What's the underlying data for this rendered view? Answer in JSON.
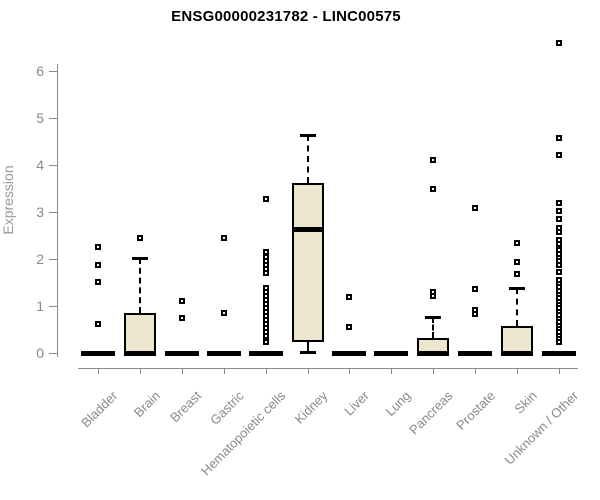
{
  "page": {
    "background": "#ffffff"
  },
  "chart_data": {
    "type": "boxplot",
    "title": "ENSG00000231782 - LINC00575",
    "ylabel": "Expression",
    "xlabel": "",
    "yticks": [
      0,
      1,
      2,
      3,
      4,
      5,
      6
    ],
    "ylim": [
      0,
      6.15
    ],
    "grid": false,
    "legend": "none",
    "colors": {
      "box_fill": "#ede6cf",
      "box_stroke": "#000000",
      "axis": "#8a8a8a",
      "tick_label": "#8a8a8a",
      "title": "#000000"
    },
    "categories": [
      "Bladder",
      "Brain",
      "Breast",
      "Gastric",
      "Hematopoietic cells",
      "Kidney",
      "Liver",
      "Lung",
      "Pancreas",
      "Prostate",
      "Skin",
      "Unknown / Other"
    ],
    "series": [
      {
        "category": "Bladder",
        "q1": 0,
        "median": 0,
        "q3": 0,
        "whisker_low": 0,
        "whisker_high": 0,
        "outliers": [
          2.26,
          1.87,
          1.51,
          0.62
        ]
      },
      {
        "category": "Brain",
        "q1": 0,
        "median": 0,
        "q3": 0.85,
        "whisker_low": 0,
        "whisker_high": 2.02,
        "outliers": [
          2.45
        ]
      },
      {
        "category": "Breast",
        "q1": 0,
        "median": 0,
        "q3": 0,
        "whisker_low": 0,
        "whisker_high": 0,
        "outliers": [
          1.11,
          0.74
        ]
      },
      {
        "category": "Gastric",
        "q1": 0,
        "median": 0,
        "q3": 0,
        "whisker_low": 0,
        "whisker_high": 0,
        "outliers": [
          2.45,
          0.85
        ]
      },
      {
        "category": "Hematopoietic cells",
        "q1": 0,
        "median": 0,
        "q3": 0,
        "whisker_low": 0,
        "whisker_high": 0,
        "outliers": [
          3.28,
          2.15,
          2.04,
          1.96,
          1.88,
          1.79,
          1.71,
          1.38,
          1.3,
          1.22,
          1.13,
          1.05,
          0.96,
          0.88,
          0.79,
          0.71,
          0.62,
          0.54,
          0.45,
          0.36,
          0.23
        ]
      },
      {
        "category": "Kidney",
        "q1": 0.28,
        "median": 2.64,
        "q3": 3.62,
        "whisker_low": 0.02,
        "whisker_high": 4.64,
        "outliers": []
      },
      {
        "category": "Liver",
        "q1": 0,
        "median": 0,
        "q3": 0,
        "whisker_low": 0,
        "whisker_high": 0,
        "outliers": [
          1.19,
          0.55
        ]
      },
      {
        "category": "Lung",
        "q1": 0,
        "median": 0,
        "q3": 0,
        "whisker_low": 0,
        "whisker_high": 0,
        "outliers": []
      },
      {
        "category": "Pancreas",
        "q1": 0,
        "median": 0,
        "q3": 0.32,
        "whisker_low": 0,
        "whisker_high": 0.77,
        "outliers": [
          4.11,
          3.49,
          1.3,
          1.21
        ]
      },
      {
        "category": "Prostate",
        "q1": 0,
        "median": 0,
        "q3": 0,
        "whisker_low": 0,
        "whisker_high": 0,
        "outliers": [
          3.09,
          1.36,
          0.91,
          0.84
        ]
      },
      {
        "category": "Skin",
        "q1": 0,
        "median": 0,
        "q3": 0.57,
        "whisker_low": 0,
        "whisker_high": 1.38,
        "outliers": [
          2.34,
          1.94,
          1.68
        ]
      },
      {
        "category": "Unknown / Other",
        "q1": 0,
        "median": 0,
        "q3": 0,
        "whisker_low": 0,
        "whisker_high": 0,
        "outliers": [
          6.6,
          4.57,
          4.21,
          3.19,
          3.02,
          2.85,
          2.66,
          2.58,
          2.4,
          2.32,
          2.19,
          2.11,
          2.03,
          1.95,
          1.87,
          1.72,
          1.55,
          1.47,
          1.4,
          1.32,
          1.24,
          1.17,
          1.09,
          1.02,
          0.96,
          0.88,
          0.81,
          0.73,
          0.66,
          0.58,
          0.51,
          0.44,
          0.36,
          0.29,
          0.23
        ]
      }
    ]
  }
}
